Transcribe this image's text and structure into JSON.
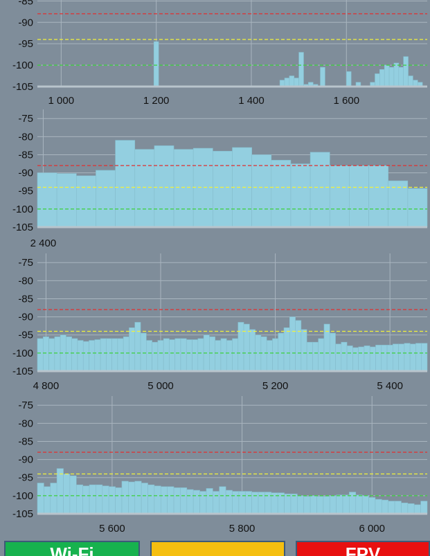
{
  "colors": {
    "background": "#7f8d9a",
    "bar": "#93cfe0",
    "grid": "#a9b5bf",
    "threshold_red": "#e03030",
    "threshold_yellow": "#f2f23a",
    "threshold_green": "#3ad13a"
  },
  "chart_data": [
    {
      "type": "bar",
      "y_ticks": [
        "-85",
        "-90",
        "-95",
        "-100",
        "-105"
      ],
      "x_ticks": [
        "1 000",
        "1 200",
        "1 400",
        "1 600"
      ],
      "ylim": [
        -105,
        -83
      ],
      "thresholds": [
        -88,
        -94,
        -100
      ],
      "bars": [
        {
          "x": 1200,
          "y": -94.5
        },
        {
          "x": 1207,
          "y": -105
        },
        {
          "x": 1465,
          "y": -103.5
        },
        {
          "x": 1475,
          "y": -103
        },
        {
          "x": 1485,
          "y": -102.5
        },
        {
          "x": 1495,
          "y": -103
        },
        {
          "x": 1505,
          "y": -97
        },
        {
          "x": 1515,
          "y": -104.5
        },
        {
          "x": 1525,
          "y": -104
        },
        {
          "x": 1535,
          "y": -104.5
        },
        {
          "x": 1550,
          "y": -100.5
        },
        {
          "x": 1605,
          "y": -101.5
        },
        {
          "x": 1625,
          "y": -104
        },
        {
          "x": 1655,
          "y": -104
        },
        {
          "x": 1665,
          "y": -102
        },
        {
          "x": 1675,
          "y": -101
        },
        {
          "x": 1685,
          "y": -100
        },
        {
          "x": 1695,
          "y": -100.5
        },
        {
          "x": 1705,
          "y": -99.5
        },
        {
          "x": 1715,
          "y": -100.5
        },
        {
          "x": 1725,
          "y": -98
        },
        {
          "x": 1735,
          "y": -102.5
        },
        {
          "x": 1745,
          "y": -103.5
        },
        {
          "x": 1755,
          "y": -104
        }
      ],
      "bar_width": 10,
      "xlim": [
        950,
        1770
      ]
    },
    {
      "type": "bar",
      "y_ticks": [
        "-75",
        "-80",
        "-85",
        "-90",
        "-95",
        "-100",
        "-105"
      ],
      "x_ticks": [
        "2 400"
      ],
      "ylim": [
        -105,
        -74
      ],
      "thresholds": [
        -88,
        -94,
        -100
      ],
      "bars": [
        {
          "x": 2401,
          "y": -90
        },
        {
          "x": 2406,
          "y": -90.2
        },
        {
          "x": 2411,
          "y": -90.8
        },
        {
          "x": 2416,
          "y": -89.3
        },
        {
          "x": 2421,
          "y": -81
        },
        {
          "x": 2426,
          "y": -83.5
        },
        {
          "x": 2431,
          "y": -82.5
        },
        {
          "x": 2436,
          "y": -83.5
        },
        {
          "x": 2441,
          "y": -83.2
        },
        {
          "x": 2446,
          "y": -84
        },
        {
          "x": 2451,
          "y": -83
        },
        {
          "x": 2456,
          "y": -85
        },
        {
          "x": 2461,
          "y": -86.5
        },
        {
          "x": 2466,
          "y": -87.5
        },
        {
          "x": 2471,
          "y": -84.3
        },
        {
          "x": 2476,
          "y": -88
        },
        {
          "x": 2481,
          "y": -88
        },
        {
          "x": 2486,
          "y": -88
        },
        {
          "x": 2491,
          "y": -92.2
        },
        {
          "x": 2496,
          "y": -94.3
        }
      ],
      "bar_width": 5,
      "xlim": [
        2398.5,
        2498.5
      ]
    },
    {
      "type": "bar",
      "y_ticks": [
        "-75",
        "-80",
        "-85",
        "-90",
        "-95",
        "-100",
        "-105"
      ],
      "x_ticks": [
        "4 800",
        "5 000",
        "5 200",
        "5 400"
      ],
      "ylim": [
        -105,
        -74
      ],
      "thresholds": [
        -88,
        -94,
        -100
      ],
      "bars": [
        {
          "x": 4790,
          "y": -96
        },
        {
          "x": 4800,
          "y": -95.5
        },
        {
          "x": 4810,
          "y": -96
        },
        {
          "x": 4820,
          "y": -95.5
        },
        {
          "x": 4830,
          "y": -95
        },
        {
          "x": 4840,
          "y": -95.5
        },
        {
          "x": 4850,
          "y": -96
        },
        {
          "x": 4860,
          "y": -96.5
        },
        {
          "x": 4870,
          "y": -96.8
        },
        {
          "x": 4880,
          "y": -96.5
        },
        {
          "x": 4890,
          "y": -96.3
        },
        {
          "x": 4900,
          "y": -96
        },
        {
          "x": 4910,
          "y": -96
        },
        {
          "x": 4920,
          "y": -96
        },
        {
          "x": 4930,
          "y": -96
        },
        {
          "x": 4940,
          "y": -95.5
        },
        {
          "x": 4950,
          "y": -93
        },
        {
          "x": 4960,
          "y": -91.5
        },
        {
          "x": 4970,
          "y": -94.5
        },
        {
          "x": 4980,
          "y": -96.5
        },
        {
          "x": 4990,
          "y": -97
        },
        {
          "x": 5000,
          "y": -96.5
        },
        {
          "x": 5010,
          "y": -96
        },
        {
          "x": 5020,
          "y": -96.3
        },
        {
          "x": 5030,
          "y": -96
        },
        {
          "x": 5040,
          "y": -96
        },
        {
          "x": 5050,
          "y": -96.3
        },
        {
          "x": 5060,
          "y": -96.3
        },
        {
          "x": 5070,
          "y": -96
        },
        {
          "x": 5080,
          "y": -95
        },
        {
          "x": 5090,
          "y": -95.5
        },
        {
          "x": 5100,
          "y": -96.5
        },
        {
          "x": 5110,
          "y": -96
        },
        {
          "x": 5120,
          "y": -96.5
        },
        {
          "x": 5130,
          "y": -96
        },
        {
          "x": 5140,
          "y": -91.5
        },
        {
          "x": 5150,
          "y": -92
        },
        {
          "x": 5160,
          "y": -93.5
        },
        {
          "x": 5170,
          "y": -95
        },
        {
          "x": 5180,
          "y": -95.5
        },
        {
          "x": 5190,
          "y": -96.5
        },
        {
          "x": 5200,
          "y": -96
        },
        {
          "x": 5210,
          "y": -94.5
        },
        {
          "x": 5220,
          "y": -93
        },
        {
          "x": 5230,
          "y": -90
        },
        {
          "x": 5240,
          "y": -91
        },
        {
          "x": 5250,
          "y": -93.5
        },
        {
          "x": 5260,
          "y": -97
        },
        {
          "x": 5270,
          "y": -97
        },
        {
          "x": 5280,
          "y": -96
        },
        {
          "x": 5290,
          "y": -92
        },
        {
          "x": 5300,
          "y": -94.5
        },
        {
          "x": 5310,
          "y": -97.5
        },
        {
          "x": 5320,
          "y": -97
        },
        {
          "x": 5330,
          "y": -98
        },
        {
          "x": 5340,
          "y": -98.5
        },
        {
          "x": 5350,
          "y": -98.3
        },
        {
          "x": 5360,
          "y": -98
        },
        {
          "x": 5370,
          "y": -98.3
        },
        {
          "x": 5380,
          "y": -97.8
        },
        {
          "x": 5390,
          "y": -97.8
        },
        {
          "x": 5400,
          "y": -97.8
        },
        {
          "x": 5410,
          "y": -97.5
        },
        {
          "x": 5420,
          "y": -97.5
        },
        {
          "x": 5430,
          "y": -97.3
        },
        {
          "x": 5440,
          "y": -97.5
        },
        {
          "x": 5450,
          "y": -97.3
        },
        {
          "x": 5460,
          "y": -97.3
        }
      ],
      "bar_width": 10,
      "xlim": [
        4785,
        5465
      ]
    },
    {
      "type": "bar",
      "y_ticks": [
        "-75",
        "-80",
        "-85",
        "-90",
        "-95",
        "-100",
        "-105"
      ],
      "x_ticks": [
        "5 600",
        "5 800",
        "6 000"
      ],
      "ylim": [
        -105,
        -74
      ],
      "thresholds": [
        -88,
        -94,
        -100
      ],
      "bars": [
        {
          "x": 5490,
          "y": -96.5
        },
        {
          "x": 5500,
          "y": -97.5
        },
        {
          "x": 5510,
          "y": -96.5
        },
        {
          "x": 5520,
          "y": -92.5
        },
        {
          "x": 5530,
          "y": -94
        },
        {
          "x": 5540,
          "y": -94.5
        },
        {
          "x": 5550,
          "y": -97
        },
        {
          "x": 5560,
          "y": -97.3
        },
        {
          "x": 5570,
          "y": -97
        },
        {
          "x": 5580,
          "y": -97
        },
        {
          "x": 5590,
          "y": -97.3
        },
        {
          "x": 5600,
          "y": -97.5
        },
        {
          "x": 5610,
          "y": -97.8
        },
        {
          "x": 5620,
          "y": -96
        },
        {
          "x": 5630,
          "y": -96.2
        },
        {
          "x": 5640,
          "y": -96
        },
        {
          "x": 5650,
          "y": -96.5
        },
        {
          "x": 5660,
          "y": -97
        },
        {
          "x": 5670,
          "y": -97.3
        },
        {
          "x": 5680,
          "y": -97.5
        },
        {
          "x": 5690,
          "y": -97.5
        },
        {
          "x": 5700,
          "y": -97.8
        },
        {
          "x": 5710,
          "y": -97.8
        },
        {
          "x": 5720,
          "y": -98.3
        },
        {
          "x": 5730,
          "y": -98.5
        },
        {
          "x": 5740,
          "y": -98.8
        },
        {
          "x": 5750,
          "y": -98
        },
        {
          "x": 5760,
          "y": -98.8
        },
        {
          "x": 5770,
          "y": -97.5
        },
        {
          "x": 5780,
          "y": -98.5
        },
        {
          "x": 5790,
          "y": -98.8
        },
        {
          "x": 5800,
          "y": -98.8
        },
        {
          "x": 5810,
          "y": -98.8
        },
        {
          "x": 5820,
          "y": -99
        },
        {
          "x": 5830,
          "y": -99
        },
        {
          "x": 5840,
          "y": -99
        },
        {
          "x": 5850,
          "y": -99.2
        },
        {
          "x": 5860,
          "y": -99.2
        },
        {
          "x": 5870,
          "y": -99.5
        },
        {
          "x": 5880,
          "y": -99.5
        },
        {
          "x": 5890,
          "y": -100
        },
        {
          "x": 5900,
          "y": -100.2
        },
        {
          "x": 5910,
          "y": -100
        },
        {
          "x": 5920,
          "y": -100.2
        },
        {
          "x": 5930,
          "y": -100.2
        },
        {
          "x": 5940,
          "y": -100
        },
        {
          "x": 5950,
          "y": -99.8
        },
        {
          "x": 5960,
          "y": -99.8
        },
        {
          "x": 5970,
          "y": -99
        },
        {
          "x": 5980,
          "y": -99.8
        },
        {
          "x": 5990,
          "y": -100
        },
        {
          "x": 6000,
          "y": -100.5
        },
        {
          "x": 6010,
          "y": -101
        },
        {
          "x": 6020,
          "y": -101.2
        },
        {
          "x": 6030,
          "y": -101.5
        },
        {
          "x": 6040,
          "y": -101.5
        },
        {
          "x": 6050,
          "y": -102
        },
        {
          "x": 6060,
          "y": -102.2
        },
        {
          "x": 6070,
          "y": -102.5
        },
        {
          "x": 6080,
          "y": -101.5
        }
      ],
      "bar_width": 10,
      "xlim": [
        5485,
        6085
      ]
    }
  ],
  "buttons": [
    {
      "label": "Wi-Fi",
      "color": "#17b24e"
    },
    {
      "label": "",
      "color": "#f5bf10"
    },
    {
      "label": "FPV",
      "color": "#e81010"
    }
  ]
}
